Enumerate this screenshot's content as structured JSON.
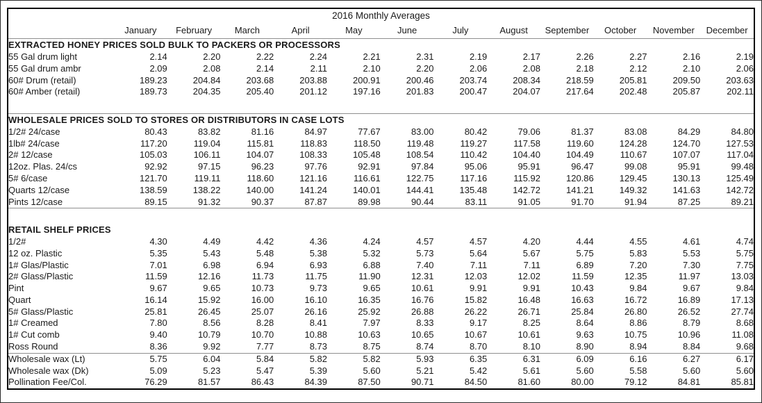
{
  "title": "2016 Monthly Averages",
  "months": [
    "January",
    "February",
    "March",
    "April",
    "May",
    "June",
    "July",
    "August",
    "September",
    "October",
    "November",
    "December"
  ],
  "colors": {
    "background": "#ffffff",
    "text": "#1a1a1a",
    "outer_border": "#000000",
    "rule_line": "#8f8f8f"
  },
  "sections": [
    {
      "header": "EXTRACTED HONEY PRICES SOLD BULK TO PACKERS OR PROCESSORS",
      "rows": [
        {
          "label": "55 Gal drum light",
          "values": [
            "2.14",
            "2.20",
            "2.22",
            "2.24",
            "2.21",
            "2.31",
            "2.19",
            "2.17",
            "2.26",
            "2.27",
            "2.16",
            "2.19"
          ]
        },
        {
          "label": "55 Gal drum ambr",
          "values": [
            "2.09",
            "2.08",
            "2.14",
            "2.11",
            "2.10",
            "2.20",
            "2.06",
            "2.08",
            "2.18",
            "2.12",
            "2.10",
            "2.06"
          ]
        },
        {
          "label": "60# Drum (retail)",
          "values": [
            "189.23",
            "204.84",
            "203.68",
            "203.88",
            "200.91",
            "200.46",
            "203.74",
            "208.34",
            "218.59",
            "205.81",
            "209.50",
            "203.63"
          ]
        },
        {
          "label": "60# Amber (retail)",
          "values": [
            "189.73",
            "204.35",
            "205.40",
            "201.12",
            "197.16",
            "201.83",
            "200.47",
            "204.07",
            "217.64",
            "202.48",
            "205.87",
            "202.11"
          ]
        }
      ]
    },
    {
      "header": "WHOLESALE PRICES SOLD TO STORES OR DISTRIBUTORS IN CASE LOTS",
      "rows": [
        {
          "label": "1/2# 24/case",
          "values": [
            "80.43",
            "83.82",
            "81.16",
            "84.97",
            "77.67",
            "83.00",
            "80.42",
            "79.06",
            "81.37",
            "83.08",
            "84.29",
            "84.80"
          ]
        },
        {
          "label": "1lb# 24/case",
          "values": [
            "117.20",
            "119.04",
            "115.81",
            "118.83",
            "118.50",
            "119.48",
            "119.27",
            "117.58",
            "119.60",
            "124.28",
            "124.70",
            "127.53"
          ]
        },
        {
          "label": "2# 12/case",
          "values": [
            "105.03",
            "106.11",
            "104.07",
            "108.33",
            "105.48",
            "108.54",
            "110.42",
            "104.40",
            "104.49",
            "110.67",
            "107.07",
            "117.04"
          ]
        },
        {
          "label": "12oz. Plas. 24/cs",
          "values": [
            "92.92",
            "97.15",
            "96.23",
            "97.76",
            "92.91",
            "97.84",
            "95.06",
            "95.91",
            "96.47",
            "99.08",
            "95.91",
            "99.48"
          ]
        },
        {
          "label": "5# 6/case",
          "values": [
            "121.70",
            "119.11",
            "118.60",
            "121.16",
            "116.61",
            "122.75",
            "117.16",
            "115.92",
            "120.86",
            "129.45",
            "130.13",
            "125.49"
          ]
        },
        {
          "label": "Quarts 12/case",
          "values": [
            "138.59",
            "138.22",
            "140.00",
            "141.24",
            "140.01",
            "144.41",
            "135.48",
            "142.72",
            "141.21",
            "149.32",
            "141.63",
            "142.72"
          ]
        },
        {
          "label": "Pints 12/case",
          "values": [
            "89.15",
            "91.32",
            "90.37",
            "87.87",
            "89.98",
            "90.44",
            "83.11",
            "91.05",
            "91.70",
            "91.94",
            "87.25",
            "89.21"
          ]
        }
      ]
    },
    {
      "header": "RETAIL SHELF PRICES",
      "rows": [
        {
          "label": "1/2#",
          "values": [
            "4.30",
            "4.49",
            "4.42",
            "4.36",
            "4.24",
            "4.57",
            "4.57",
            "4.20",
            "4.44",
            "4.55",
            "4.61",
            "4.74"
          ]
        },
        {
          "label": "12 oz. Plastic",
          "values": [
            "5.35",
            "5.43",
            "5.48",
            "5.38",
            "5.32",
            "5.73",
            "5.64",
            "5.67",
            "5.75",
            "5.83",
            "5.53",
            "5.75"
          ]
        },
        {
          "label": "1# Glas/Plastic",
          "values": [
            "7.01",
            "6.98",
            "6.94",
            "6.93",
            "6.88",
            "7.40",
            "7.11",
            "7.11",
            "6.89",
            "7.20",
            "7.30",
            "7.75"
          ]
        },
        {
          "label": "2# Glass/Plastic",
          "values": [
            "11.59",
            "12.16",
            "11.73",
            "11.75",
            "11.90",
            "12.31",
            "12.03",
            "12.02",
            "11.59",
            "12.35",
            "11.97",
            "13.03"
          ]
        },
        {
          "label": "Pint",
          "values": [
            "9.67",
            "9.65",
            "10.73",
            "9.73",
            "9.65",
            "10.61",
            "9.91",
            "9.91",
            "10.43",
            "9.84",
            "9.67",
            "9.84"
          ]
        },
        {
          "label": "Quart",
          "values": [
            "16.14",
            "15.92",
            "16.00",
            "16.10",
            "16.35",
            "16.76",
            "15.82",
            "16.48",
            "16.63",
            "16.72",
            "16.89",
            "17.13"
          ]
        },
        {
          "label": "5# Glass/Plastic",
          "values": [
            "25.81",
            "26.45",
            "25.07",
            "26.16",
            "25.92",
            "26.88",
            "26.22",
            "26.71",
            "25.84",
            "26.80",
            "26.52",
            "27.74"
          ]
        },
        {
          "label": "1# Creamed",
          "values": [
            "7.80",
            "8.56",
            "8.28",
            "8.41",
            "7.97",
            "8.33",
            "9.17",
            "8.25",
            "8.64",
            "8.86",
            "8.79",
            "8.68"
          ]
        },
        {
          "label": "1# Cut comb",
          "values": [
            "9.40",
            "10.79",
            "10.70",
            "10.88",
            "10.63",
            "10.65",
            "10.67",
            "10.61",
            "9.63",
            "10.75",
            "10.96",
            "11.08"
          ]
        },
        {
          "label": "Ross Round",
          "values": [
            "8.36",
            "9.92",
            "7.77",
            "8.73",
            "8.75",
            "8.74",
            "8.70",
            "8.10",
            "8.90",
            "8.94",
            "8.84",
            "9.68"
          ]
        }
      ]
    },
    {
      "header": "",
      "rows": [
        {
          "label": "Wholesale wax (Lt)",
          "values": [
            "5.75",
            "6.04",
            "5.84",
            "5.82",
            "5.82",
            "5.93",
            "6.35",
            "6.31",
            "6.09",
            "6.16",
            "6.27",
            "6.17"
          ]
        },
        {
          "label": "Wholesale wax (Dk)",
          "values": [
            "5.09",
            "5.23",
            "5.47",
            "5.39",
            "5.60",
            "5.21",
            "5.42",
            "5.61",
            "5.60",
            "5.58",
            "5.60",
            "5.60"
          ]
        },
        {
          "label": "Pollination Fee/Col.",
          "values": [
            "76.29",
            "81.57",
            "86.43",
            "84.39",
            "87.50",
            "90.71",
            "84.50",
            "81.60",
            "80.00",
            "79.12",
            "84.81",
            "85.81"
          ]
        }
      ]
    }
  ]
}
